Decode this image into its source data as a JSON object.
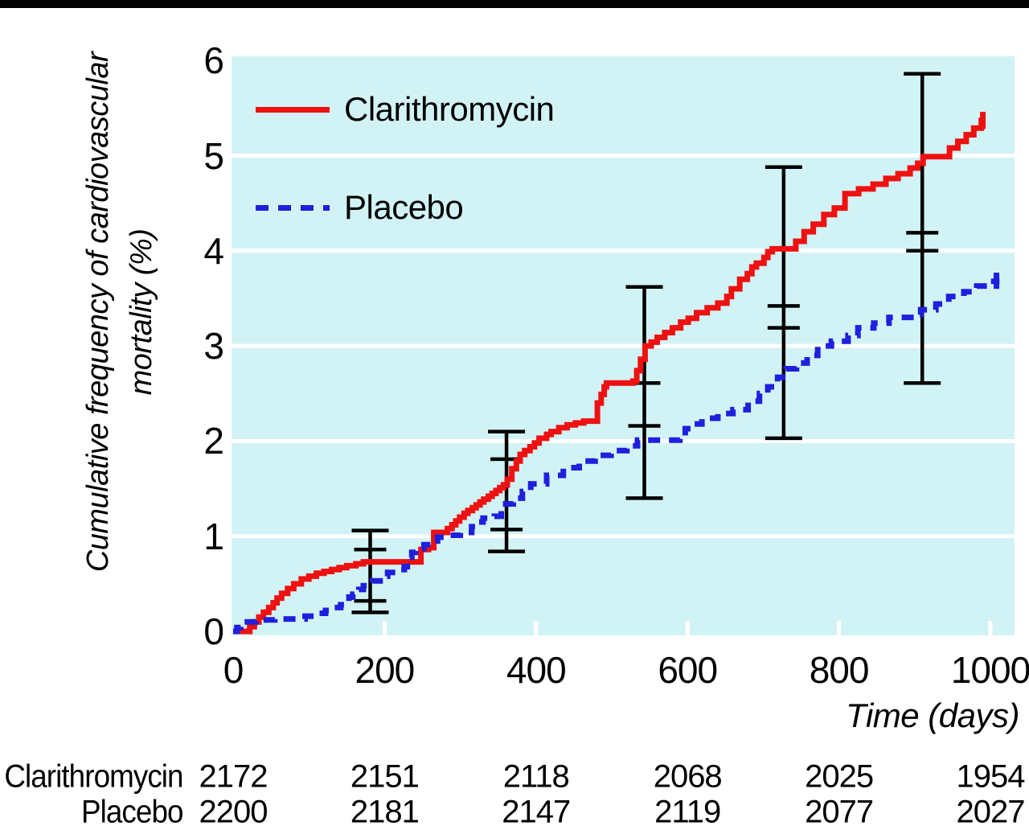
{
  "page": {
    "background": "#ffffff",
    "top_bar_color": "#000000"
  },
  "chart_data": {
    "type": "line",
    "subtype": "cumulative-incidence-step-curves",
    "title": "",
    "ylabel_lines": [
      "Cumulative frequency of cardiovascular",
      "mortality (%)"
    ],
    "xlabel": "Time (days)",
    "ylim": [
      0,
      6
    ],
    "xlim": [
      0,
      1030
    ],
    "yticks": [
      0,
      1,
      2,
      3,
      4,
      5,
      6
    ],
    "xticks": [
      0,
      200,
      400,
      600,
      800,
      1000
    ],
    "grid": "horizontal white lines at each integer, on",
    "plot_bg": "#d2f3f5",
    "grid_color": "#ffffff",
    "error_bar_color": "#000000",
    "legend": {
      "position": "top-left-inside",
      "items": [
        {
          "label": "Clarithromycin",
          "color": "#ee1111",
          "style": "solid"
        },
        {
          "label": "Placebo",
          "color": "#1f1fdd",
          "style": "dashed"
        }
      ]
    },
    "series": [
      {
        "name": "Clarithromycin",
        "color": "#ee1111",
        "style": "solid",
        "points": [
          [
            0,
            0
          ],
          [
            22,
            0.05
          ],
          [
            28,
            0.1
          ],
          [
            34,
            0.15
          ],
          [
            40,
            0.2
          ],
          [
            47,
            0.25
          ],
          [
            53,
            0.3
          ],
          [
            58,
            0.35
          ],
          [
            64,
            0.4
          ],
          [
            72,
            0.45
          ],
          [
            80,
            0.5
          ],
          [
            90,
            0.55
          ],
          [
            100,
            0.58
          ],
          [
            110,
            0.61
          ],
          [
            120,
            0.63
          ],
          [
            130,
            0.65
          ],
          [
            140,
            0.67
          ],
          [
            150,
            0.69
          ],
          [
            162,
            0.71
          ],
          [
            172,
            0.73
          ],
          [
            248,
            0.86
          ],
          [
            258,
            0.88
          ],
          [
            265,
            1.04
          ],
          [
            283,
            1.08
          ],
          [
            289,
            1.12
          ],
          [
            294,
            1.16
          ],
          [
            299,
            1.2
          ],
          [
            305,
            1.24
          ],
          [
            310,
            1.27
          ],
          [
            316,
            1.3
          ],
          [
            321,
            1.33
          ],
          [
            326,
            1.36
          ],
          [
            331,
            1.39
          ],
          [
            337,
            1.42
          ],
          [
            342,
            1.45
          ],
          [
            347,
            1.48
          ],
          [
            352,
            1.51
          ],
          [
            357,
            1.54
          ],
          [
            362,
            1.6
          ],
          [
            368,
            1.71
          ],
          [
            374,
            1.79
          ],
          [
            379,
            1.86
          ],
          [
            385,
            1.9
          ],
          [
            392,
            1.94
          ],
          [
            398,
            1.98
          ],
          [
            404,
            2.03
          ],
          [
            414,
            2.07
          ],
          [
            420,
            2.1
          ],
          [
            430,
            2.14
          ],
          [
            441,
            2.17
          ],
          [
            452,
            2.19
          ],
          [
            463,
            2.21
          ],
          [
            481,
            2.4
          ],
          [
            486,
            2.49
          ],
          [
            490,
            2.57
          ],
          [
            493,
            2.61
          ],
          [
            528,
            2.63
          ],
          [
            533,
            2.74
          ],
          [
            538,
            2.86
          ],
          [
            544,
            3.0
          ],
          [
            552,
            3.04
          ],
          [
            560,
            3.09
          ],
          [
            570,
            3.14
          ],
          [
            580,
            3.19
          ],
          [
            591,
            3.25
          ],
          [
            601,
            3.29
          ],
          [
            612,
            3.35
          ],
          [
            626,
            3.4
          ],
          [
            640,
            3.45
          ],
          [
            652,
            3.52
          ],
          [
            658,
            3.6
          ],
          [
            669,
            3.7
          ],
          [
            679,
            3.76
          ],
          [
            685,
            3.83
          ],
          [
            691,
            3.87
          ],
          [
            701,
            3.93
          ],
          [
            706,
            3.99
          ],
          [
            712,
            4.02
          ],
          [
            743,
            4.1
          ],
          [
            754,
            4.2
          ],
          [
            766,
            4.28
          ],
          [
            780,
            4.38
          ],
          [
            794,
            4.45
          ],
          [
            808,
            4.6
          ],
          [
            826,
            4.65
          ],
          [
            845,
            4.7
          ],
          [
            862,
            4.76
          ],
          [
            878,
            4.81
          ],
          [
            894,
            4.87
          ],
          [
            904,
            4.92
          ],
          [
            911,
            4.99
          ],
          [
            946,
            5.08
          ],
          [
            957,
            5.15
          ],
          [
            968,
            5.22
          ],
          [
            978,
            5.29
          ],
          [
            988,
            5.37
          ],
          [
            993,
            5.37
          ]
        ],
        "end_tick": {
          "x": 990,
          "y1": 5.28,
          "y2": 5.46
        }
      },
      {
        "name": "Placebo",
        "color": "#1f1fdd",
        "style": "dashed",
        "points": [
          [
            0,
            0
          ],
          [
            5,
            0.04
          ],
          [
            10,
            0.07
          ],
          [
            15,
            0.1
          ],
          [
            30,
            0.12
          ],
          [
            55,
            0.13
          ],
          [
            95,
            0.16
          ],
          [
            110,
            0.19
          ],
          [
            122,
            0.22
          ],
          [
            132,
            0.25
          ],
          [
            142,
            0.28
          ],
          [
            148,
            0.32
          ],
          [
            153,
            0.36
          ],
          [
            158,
            0.39
          ],
          [
            166,
            0.44
          ],
          [
            172,
            0.48
          ],
          [
            184,
            0.53
          ],
          [
            198,
            0.58
          ],
          [
            204,
            0.62
          ],
          [
            218,
            0.65
          ],
          [
            226,
            0.68
          ],
          [
            230,
            0.78
          ],
          [
            236,
            0.83
          ],
          [
            241,
            0.87
          ],
          [
            252,
            0.91
          ],
          [
            262,
            0.95
          ],
          [
            270,
            0.99
          ],
          [
            284,
            1.01
          ],
          [
            300,
            1.04
          ],
          [
            315,
            1.1
          ],
          [
            322,
            1.15
          ],
          [
            330,
            1.19
          ],
          [
            345,
            1.21
          ],
          [
            354,
            1.3
          ],
          [
            360,
            1.34
          ],
          [
            370,
            1.4
          ],
          [
            382,
            1.47
          ],
          [
            393,
            1.55
          ],
          [
            414,
            1.64
          ],
          [
            436,
            1.72
          ],
          [
            457,
            1.79
          ],
          [
            478,
            1.85
          ],
          [
            499,
            1.9
          ],
          [
            520,
            1.95
          ],
          [
            534,
            2.01
          ],
          [
            590,
            2.05
          ],
          [
            597,
            2.13
          ],
          [
            605,
            2.18
          ],
          [
            619,
            2.24
          ],
          [
            640,
            2.29
          ],
          [
            660,
            2.33
          ],
          [
            680,
            2.42
          ],
          [
            695,
            2.5
          ],
          [
            706,
            2.57
          ],
          [
            719,
            2.67
          ],
          [
            730,
            2.76
          ],
          [
            744,
            2.82
          ],
          [
            758,
            2.9
          ],
          [
            772,
            3.0
          ],
          [
            790,
            3.05
          ],
          [
            812,
            3.11
          ],
          [
            825,
            3.19
          ],
          [
            846,
            3.24
          ],
          [
            866,
            3.3
          ],
          [
            895,
            3.33
          ],
          [
            908,
            3.38
          ],
          [
            928,
            3.44
          ],
          [
            945,
            3.52
          ],
          [
            965,
            3.57
          ],
          [
            982,
            3.63
          ],
          [
            1000,
            3.68
          ],
          [
            1012,
            3.68
          ]
        ],
        "end_tick": {
          "x": 1008,
          "y1": 3.6,
          "y2": 3.77
        }
      }
    ],
    "error_bars": [
      {
        "x": 181,
        "ticks": [
          1.06,
          0.86,
          0.32,
          0.2
        ]
      },
      {
        "x": 361,
        "ticks": [
          2.1,
          1.81,
          1.07,
          0.84
        ]
      },
      {
        "x": 543,
        "ticks": [
          3.62,
          2.61,
          2.16,
          1.4
        ]
      },
      {
        "x": 727,
        "ticks": [
          4.88,
          3.42,
          3.19,
          2.03
        ]
      },
      {
        "x": 910,
        "ticks": [
          5.86,
          4.19,
          4.0,
          2.61
        ]
      }
    ]
  },
  "risk_table": {
    "rows": [
      {
        "label": "Clarithromycin",
        "values": [
          "2172",
          "2151",
          "2118",
          "2068",
          "2025",
          "1954"
        ]
      },
      {
        "label": "Placebo",
        "values": [
          "2200",
          "2181",
          "2147",
          "2119",
          "2077",
          "2027"
        ]
      }
    ]
  }
}
